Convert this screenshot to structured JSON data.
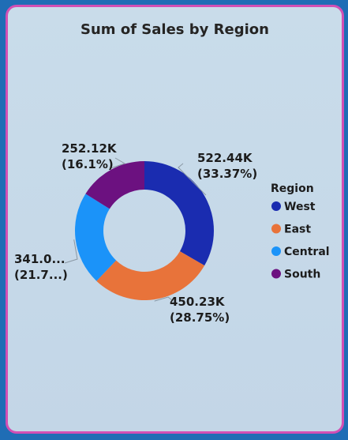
{
  "title": "Sum of Sales by Region",
  "chart_data": {
    "type": "pie",
    "variant": "donut",
    "title": "Sum of Sales by Region",
    "legend": {
      "title": "Region",
      "placement": "right"
    },
    "slices": [
      {
        "name": "West",
        "value": 522.44,
        "color": "#1a2cb0",
        "label": [
          "522.44K",
          "(33.37%)"
        ]
      },
      {
        "name": "East",
        "value": 450.23,
        "color": "#e8733a",
        "label": [
          "450.23K",
          "(28.75%)"
        ]
      },
      {
        "name": "Central",
        "value": 341.0,
        "color": "#1b93f9",
        "label": [
          "341.0...",
          "(21.7...)"
        ]
      },
      {
        "name": "South",
        "value": 252.12,
        "color": "#6c1180",
        "label": [
          "252.12K",
          "(16.1%)"
        ]
      }
    ]
  }
}
